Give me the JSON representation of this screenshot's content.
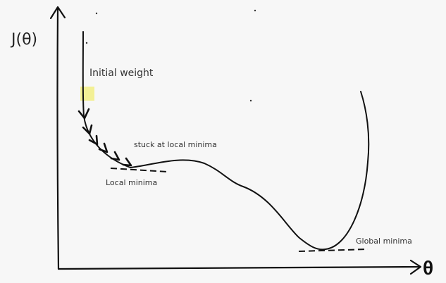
{
  "diagram": {
    "y_axis_label": "J(θ)",
    "x_axis_label": "θ",
    "initial_weight_label": "Initial weight",
    "stuck_label": "stuck at local minima",
    "local_minima_label": "Local minima",
    "global_minima_label": "Global minima",
    "highlight_color": "#f2ee8a",
    "line_color": "#111111"
  }
}
